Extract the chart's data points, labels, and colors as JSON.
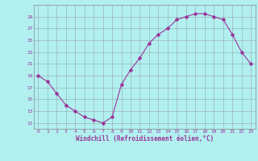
{
  "x": [
    0,
    1,
    2,
    3,
    4,
    5,
    6,
    7,
    8,
    9,
    10,
    11,
    12,
    13,
    14,
    15,
    16,
    17,
    18,
    19,
    20,
    21,
    22,
    23
  ],
  "y": [
    19,
    18,
    16,
    14,
    13,
    12,
    11.5,
    11,
    12,
    17.5,
    20,
    22,
    24.5,
    26,
    27,
    28.5,
    29,
    29.5,
    29.5,
    29,
    28.5,
    26,
    23,
    21
  ],
  "line_color": "#993399",
  "marker_color": "#993399",
  "bg_color": "#b2f0f0",
  "grid_color": "#888888",
  "xlabel": "Windchill (Refroidissement éolien,°C)",
  "xlabel_color": "#993399",
  "tick_color": "#993399",
  "ylim": [
    10,
    31
  ],
  "xlim": [
    -0.5,
    23.5
  ],
  "yticks": [
    11,
    13,
    15,
    17,
    19,
    21,
    23,
    25,
    27,
    29
  ],
  "xticks": [
    0,
    1,
    2,
    3,
    4,
    5,
    6,
    7,
    8,
    9,
    10,
    11,
    12,
    13,
    14,
    15,
    16,
    17,
    18,
    19,
    20,
    21,
    22,
    23
  ],
  "marker_size": 2.5,
  "line_width": 0.8,
  "tick_fontsize": 4.5,
  "xlabel_fontsize": 5.5
}
